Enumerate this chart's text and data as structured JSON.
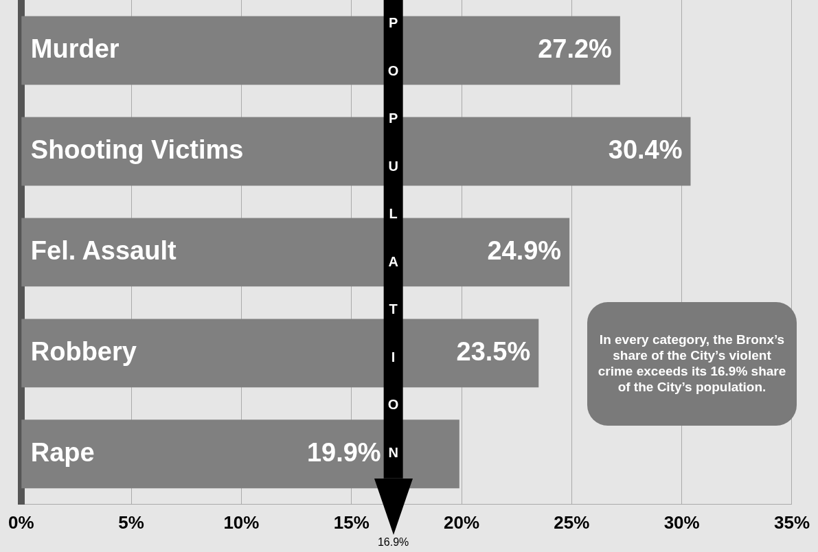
{
  "chart_data": {
    "type": "bar",
    "orientation": "horizontal",
    "categories": [
      "Murder",
      "Shooting Victims",
      "Fel. Assault",
      "Robbery",
      "Rape"
    ],
    "values": [
      27.2,
      30.4,
      24.9,
      23.5,
      19.9
    ],
    "value_labels": [
      "27.2%",
      "30.4%",
      "24.9%",
      "23.5%",
      "19.9%"
    ],
    "color": "#808080",
    "xlim": [
      0,
      35
    ],
    "xticks": [
      {
        "value": 0,
        "label": "0%"
      },
      {
        "value": 5,
        "label": "5%"
      },
      {
        "value": 10,
        "label": "10%"
      },
      {
        "value": 15,
        "label": "15%"
      },
      {
        "value": 20,
        "label": "20%"
      },
      {
        "value": 25,
        "label": "25%"
      },
      {
        "value": 30,
        "label": "30%"
      },
      {
        "value": 35,
        "label": "35%"
      }
    ],
    "grid": "x",
    "ref_lines": [
      {
        "axis": "x",
        "value": 16.9,
        "label": "POPULATION",
        "color": "#000000"
      }
    ],
    "annotations": [
      "16.9%",
      "In every category, the Bronx’s share of the City’s violent crime exceeds its 16.9% share of the City’s population."
    ]
  }
}
